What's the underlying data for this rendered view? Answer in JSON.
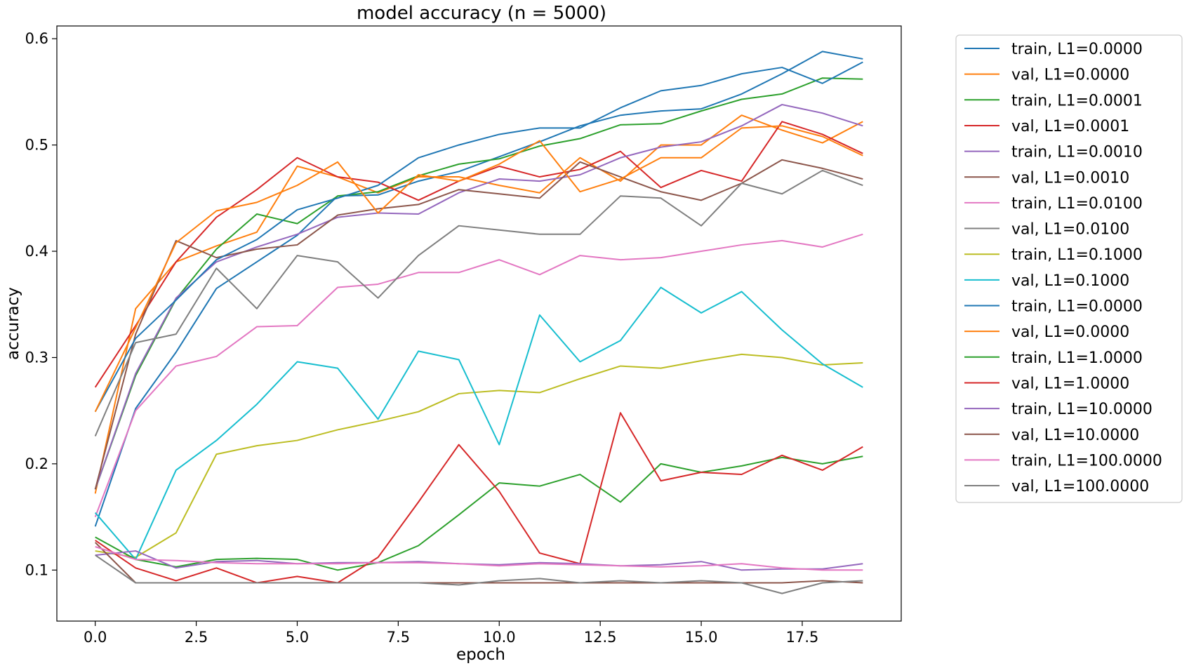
{
  "chart_data": {
    "type": "line",
    "title": "model accuracy (n = 5000)",
    "xlabel": "epoch",
    "ylabel": "accuracy",
    "xlim": [
      -0.95,
      19.95
    ],
    "ylim": [
      0.052,
      0.612
    ],
    "xticks": [
      0.0,
      2.5,
      5.0,
      7.5,
      10.0,
      12.5,
      15.0,
      17.5
    ],
    "xtick_labels": [
      "0.0",
      "2.5",
      "5.0",
      "7.5",
      "10.0",
      "12.5",
      "15.0",
      "17.5"
    ],
    "yticks": [
      0.1,
      0.2,
      0.3,
      0.4,
      0.5,
      0.6
    ],
    "ytick_labels": [
      "0.1",
      "0.2",
      "0.3",
      "0.4",
      "0.5",
      "0.6"
    ],
    "grid": false,
    "legend_position": "outside-right",
    "x": [
      0,
      1,
      2,
      3,
      4,
      5,
      6,
      7,
      8,
      9,
      10,
      11,
      12,
      13,
      14,
      15,
      16,
      17,
      18,
      19
    ],
    "series": [
      {
        "name": "train, L1=0.0000",
        "color": "#1f77b4",
        "values": [
          0.141,
          0.252,
          0.305,
          0.365,
          0.39,
          0.415,
          0.452,
          0.453,
          0.466,
          0.475,
          0.489,
          0.503,
          0.518,
          0.528,
          0.532,
          0.534,
          0.548,
          0.567,
          0.588,
          0.581
        ]
      },
      {
        "name": "val, L1=0.0000",
        "color": "#ff7f0e",
        "values": [
          0.172,
          0.346,
          0.39,
          0.405,
          0.418,
          0.48,
          0.47,
          0.455,
          0.47,
          0.47,
          0.462,
          0.455,
          0.488,
          0.466,
          0.5,
          0.5,
          0.528,
          0.514,
          0.502,
          0.522
        ]
      },
      {
        "name": "train, L1=0.0001",
        "color": "#2ca02c",
        "values": [
          0.176,
          0.283,
          0.355,
          0.402,
          0.435,
          0.426,
          0.452,
          0.456,
          0.471,
          0.482,
          0.487,
          0.499,
          0.506,
          0.519,
          0.52,
          0.532,
          0.543,
          0.548,
          0.563,
          0.562
        ]
      },
      {
        "name": "val, L1=0.0001",
        "color": "#d62728",
        "values": [
          0.272,
          0.33,
          0.39,
          0.432,
          0.458,
          0.488,
          0.47,
          0.465,
          0.448,
          0.466,
          0.48,
          0.47,
          0.477,
          0.494,
          0.46,
          0.476,
          0.466,
          0.522,
          0.51,
          0.492
        ]
      },
      {
        "name": "train, L1=0.0010",
        "color": "#9467bd",
        "values": [
          0.176,
          0.285,
          0.356,
          0.39,
          0.404,
          0.416,
          0.432,
          0.436,
          0.435,
          0.455,
          0.468,
          0.466,
          0.472,
          0.488,
          0.498,
          0.503,
          0.518,
          0.538,
          0.53,
          0.518
        ]
      },
      {
        "name": "val, L1=0.0010",
        "color": "#8c564b",
        "values": [
          0.176,
          0.322,
          0.41,
          0.394,
          0.402,
          0.406,
          0.434,
          0.44,
          0.444,
          0.458,
          0.454,
          0.45,
          0.484,
          0.47,
          0.456,
          0.448,
          0.464,
          0.486,
          0.478,
          0.468
        ]
      },
      {
        "name": "train, L1=0.0100",
        "color": "#e377c2",
        "values": [
          0.15,
          0.25,
          0.292,
          0.301,
          0.329,
          0.33,
          0.366,
          0.369,
          0.38,
          0.38,
          0.392,
          0.378,
          0.396,
          0.392,
          0.394,
          0.4,
          0.406,
          0.41,
          0.404,
          0.416
        ]
      },
      {
        "name": "val, L1=0.0100",
        "color": "#7f7f7f",
        "values": [
          0.226,
          0.314,
          0.322,
          0.384,
          0.346,
          0.396,
          0.39,
          0.356,
          0.396,
          0.424,
          0.42,
          0.416,
          0.416,
          0.452,
          0.45,
          0.424,
          0.464,
          0.454,
          0.476,
          0.462
        ]
      },
      {
        "name": "train, L1=0.1000",
        "color": "#bcbd22",
        "values": [
          0.118,
          0.112,
          0.135,
          0.209,
          0.217,
          0.222,
          0.232,
          0.24,
          0.249,
          0.266,
          0.269,
          0.267,
          0.28,
          0.292,
          0.29,
          0.297,
          0.303,
          0.3,
          0.293,
          0.295
        ]
      },
      {
        "name": "val, L1=0.1000",
        "color": "#17becf",
        "values": [
          0.154,
          0.11,
          0.194,
          0.222,
          0.256,
          0.296,
          0.29,
          0.242,
          0.306,
          0.298,
          0.218,
          0.34,
          0.296,
          0.316,
          0.366,
          0.342,
          0.362,
          0.326,
          0.294,
          0.272
        ]
      },
      {
        "name": "train, L1=0.0000",
        "color": "#1f77b4",
        "values": [
          0.249,
          0.318,
          0.354,
          0.392,
          0.411,
          0.439,
          0.45,
          0.462,
          0.488,
          0.5,
          0.51,
          0.516,
          0.516,
          0.535,
          0.551,
          0.556,
          0.567,
          0.573,
          0.558,
          0.578
        ]
      },
      {
        "name": "val, L1=0.0000",
        "color": "#ff7f0e",
        "values": [
          0.249,
          0.328,
          0.408,
          0.438,
          0.446,
          0.462,
          0.484,
          0.436,
          0.472,
          0.466,
          0.482,
          0.504,
          0.456,
          0.468,
          0.488,
          0.488,
          0.516,
          0.518,
          0.508,
          0.49
        ]
      },
      {
        "name": "train, L1=1.0000",
        "color": "#2ca02c",
        "values": [
          0.131,
          0.11,
          0.103,
          0.11,
          0.111,
          0.11,
          0.1,
          0.107,
          0.123,
          0.152,
          0.182,
          0.179,
          0.19,
          0.164,
          0.2,
          0.192,
          0.198,
          0.206,
          0.2,
          0.207
        ]
      },
      {
        "name": "val, L1=1.0000",
        "color": "#d62728",
        "values": [
          0.128,
          0.102,
          0.09,
          0.102,
          0.088,
          0.094,
          0.088,
          0.112,
          0.164,
          0.218,
          0.174,
          0.116,
          0.106,
          0.248,
          0.184,
          0.192,
          0.19,
          0.208,
          0.194,
          0.216
        ]
      },
      {
        "name": "train, L1=10.0000",
        "color": "#9467bd",
        "values": [
          0.114,
          0.118,
          0.102,
          0.108,
          0.109,
          0.106,
          0.107,
          0.107,
          0.108,
          0.106,
          0.105,
          0.107,
          0.106,
          0.104,
          0.105,
          0.108,
          0.1,
          0.101,
          0.101,
          0.106
        ]
      },
      {
        "name": "val, L1=10.0000",
        "color": "#8c564b",
        "values": [
          0.126,
          0.088,
          0.088,
          0.088,
          0.088,
          0.088,
          0.088,
          0.088,
          0.088,
          0.088,
          0.088,
          0.088,
          0.088,
          0.088,
          0.088,
          0.088,
          0.088,
          0.088,
          0.09,
          0.088
        ]
      },
      {
        "name": "train, L1=100.0000",
        "color": "#e377c2",
        "values": [
          0.122,
          0.11,
          0.109,
          0.107,
          0.106,
          0.106,
          0.106,
          0.107,
          0.107,
          0.106,
          0.104,
          0.106,
          0.105,
          0.104,
          0.103,
          0.104,
          0.106,
          0.102,
          0.1,
          0.1
        ]
      },
      {
        "name": "val, L1=100.0000",
        "color": "#7f7f7f",
        "values": [
          0.114,
          0.088,
          0.088,
          0.088,
          0.088,
          0.088,
          0.088,
          0.088,
          0.088,
          0.086,
          0.09,
          0.092,
          0.088,
          0.09,
          0.088,
          0.09,
          0.088,
          0.078,
          0.088,
          0.09
        ]
      }
    ]
  }
}
